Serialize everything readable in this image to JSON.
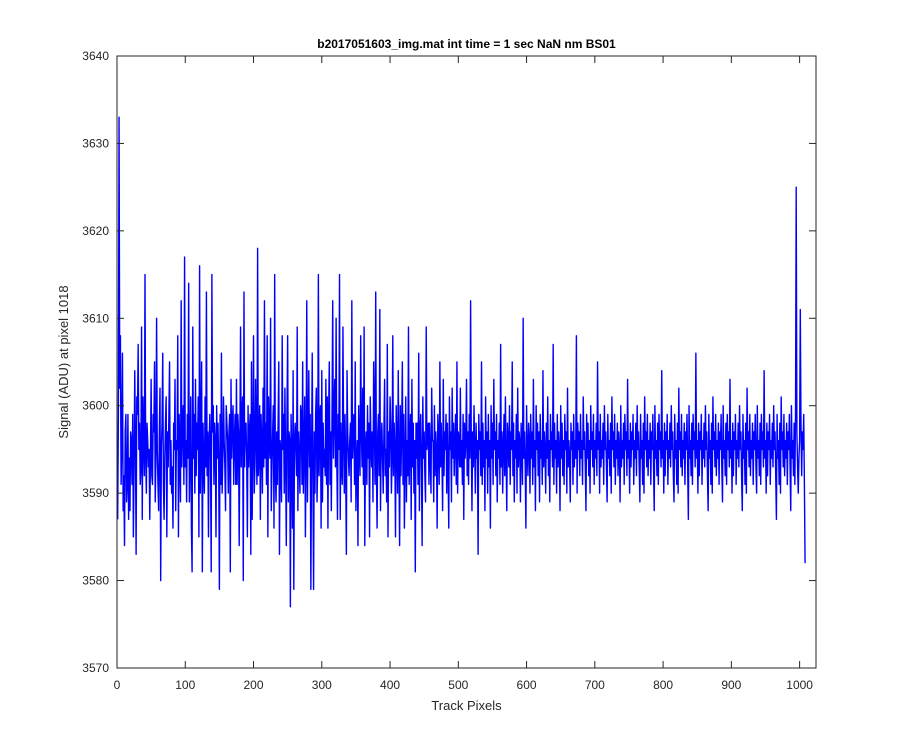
{
  "chart_data": {
    "type": "line",
    "title": "b2017051603_img.mat int time = 1 sec  NaN nm BS01",
    "xlabel": "Track Pixels",
    "ylabel": "Signal (ADU) at pixel 1018",
    "xlim": [
      0,
      1024
    ],
    "ylim": [
      3570,
      3640
    ],
    "xticks": [
      0,
      100,
      200,
      300,
      400,
      500,
      600,
      700,
      800,
      900,
      1000
    ],
    "yticks": [
      3570,
      3580,
      3590,
      3600,
      3610,
      3620,
      3630,
      3640
    ],
    "grid": false,
    "legend": "none",
    "series": [
      {
        "color": "#0000ff",
        "x_start": 1,
        "x_step": 1,
        "values": [
          3587,
          3599,
          3633,
          3602,
          3608,
          3591,
          3596,
          3606,
          3588,
          3592,
          3584,
          3597,
          3599,
          3589,
          3591,
          3599,
          3587,
          3594,
          3588,
          3597,
          3596,
          3591,
          3599,
          3585,
          3593,
          3604,
          3596,
          3583,
          3601,
          3599,
          3607,
          3595,
          3598,
          3591,
          3593,
          3609,
          3587,
          3601,
          3596,
          3592,
          3615,
          3594,
          3590,
          3598,
          3596,
          3593,
          3595,
          3587,
          3594,
          3603,
          3592,
          3591,
          3599,
          3597,
          3605,
          3589,
          3594,
          3610,
          3595,
          3591,
          3588,
          3597,
          3602,
          3580,
          3595,
          3598,
          3606,
          3591,
          3587,
          3594,
          3598,
          3601,
          3585,
          3597,
          3593,
          3599,
          3605,
          3591,
          3596,
          3590,
          3593,
          3586,
          3598,
          3595,
          3603,
          3588,
          3596,
          3595,
          3608,
          3585,
          3599,
          3594,
          3589,
          3612,
          3593,
          3598,
          3600,
          3591,
          3617,
          3593,
          3596,
          3589,
          3599,
          3594,
          3614,
          3589,
          3594,
          3601,
          3586,
          3581,
          3609,
          3594,
          3599,
          3590,
          3603,
          3592,
          3598,
          3595,
          3601,
          3585,
          3616,
          3590,
          3596,
          3605,
          3581,
          3598,
          3593,
          3590,
          3601,
          3593,
          3613,
          3592,
          3597,
          3585,
          3596,
          3599,
          3594,
          3581,
          3615,
          3597,
          3600,
          3591,
          3598,
          3596,
          3585,
          3600,
          3594,
          3598,
          3593,
          3579,
          3599,
          3591,
          3606,
          3590,
          3594,
          3601,
          3596,
          3593,
          3588,
          3600,
          3598,
          3596,
          3590,
          3597,
          3599,
          3581,
          3603,
          3594,
          3598,
          3600,
          3591,
          3596,
          3599,
          3591,
          3603,
          3591,
          3599,
          3597,
          3584,
          3596,
          3609,
          3593,
          3599,
          3601,
          3580,
          3613,
          3593,
          3598,
          3598,
          3594,
          3585,
          3600,
          3593,
          3597,
          3599,
          3583,
          3605,
          3587,
          3595,
          3608,
          3590,
          3593,
          3603,
          3596,
          3591,
          3618,
          3592,
          3594,
          3600,
          3587,
          3599,
          3596,
          3590,
          3602,
          3593,
          3612,
          3594,
          3598,
          3591,
          3608,
          3585,
          3601,
          3596,
          3594,
          3610,
          3588,
          3593,
          3597,
          3600,
          3586,
          3615,
          3592,
          3589,
          3597,
          3591,
          3598,
          3605,
          3583,
          3596,
          3594,
          3589,
          3608,
          3595,
          3599,
          3590,
          3602,
          3594,
          3584,
          3599,
          3608,
          3589,
          3597,
          3596,
          3577,
          3599,
          3594,
          3586,
          3604,
          3579,
          3596,
          3598,
          3595,
          3592,
          3609,
          3588,
          3597,
          3594,
          3590,
          3600,
          3599,
          3591,
          3605,
          3590,
          3595,
          3601,
          3585,
          3594,
          3612,
          3589,
          3597,
          3604,
          3593,
          3599,
          3579,
          3594,
          3606,
          3592,
          3579,
          3597,
          3590,
          3599,
          3602,
          3589,
          3593,
          3615,
          3592,
          3598,
          3600,
          3586,
          3604,
          3589,
          3598,
          3593,
          3595,
          3592,
          3603,
          3591,
          3601,
          3586,
          3599,
          3605,
          3591,
          3597,
          3588,
          3599,
          3612,
          3594,
          3599,
          3603,
          3593,
          3610,
          3594,
          3587,
          3599,
          3595,
          3615,
          3587,
          3598,
          3593,
          3591,
          3609,
          3596,
          3590,
          3599,
          3593,
          3583,
          3604,
          3597,
          3594,
          3592,
          3596,
          3598,
          3589,
          3612,
          3594,
          3597,
          3599,
          3591,
          3605,
          3588,
          3593,
          3596,
          3584,
          3600,
          3595,
          3592,
          3608,
          3597,
          3593,
          3602,
          3591,
          3609,
          3584,
          3595,
          3597,
          3591,
          3600,
          3594,
          3598,
          3585,
          3601,
          3596,
          3593,
          3597,
          3589,
          3605,
          3599,
          3591,
          3613,
          3593,
          3586,
          3597,
          3599,
          3592,
          3611,
          3588,
          3595,
          3598,
          3594,
          3590,
          3597,
          3603,
          3592,
          3595,
          3589,
          3607,
          3585,
          3597,
          3593,
          3601,
          3598,
          3590,
          3594,
          3608,
          3592,
          3598,
          3595,
          3585,
          3600,
          3596,
          3590,
          3604,
          3594,
          3584,
          3600,
          3592,
          3597,
          3605,
          3591,
          3599,
          3586,
          3594,
          3601,
          3589,
          3596,
          3592,
          3609,
          3591,
          3596,
          3599,
          3587,
          3603,
          3593,
          3598,
          3590,
          3596,
          3581,
          3598,
          3594,
          3598,
          3591,
          3606,
          3588,
          3597,
          3599,
          3593,
          3584,
          3601,
          3594,
          3597,
          3592,
          3589,
          3609,
          3595,
          3597,
          3598,
          3591,
          3598,
          3594,
          3590,
          3602,
          3596,
          3596,
          3589,
          3600,
          3592,
          3597,
          3595,
          3586,
          3599,
          3596,
          3591,
          3605,
          3593,
          3598,
          3594,
          3588,
          3603,
          3592,
          3597,
          3595,
          3599,
          3590,
          3598,
          3593,
          3586,
          3601,
          3595,
          3597,
          3589,
          3602,
          3594,
          3598,
          3592,
          3596,
          3599,
          3591,
          3605,
          3590,
          3597,
          3596,
          3593,
          3602,
          3593,
          3596,
          3591,
          3599,
          3587,
          3598,
          3594,
          3596,
          3603,
          3592,
          3597,
          3591,
          3599,
          3594,
          3612,
          3596,
          3588,
          3597,
          3593,
          3600,
          3595,
          3590,
          3598,
          3594,
          3596,
          3583,
          3599,
          3595,
          3597,
          3592,
          3605,
          3591,
          3598,
          3593,
          3596,
          3588,
          3601,
          3594,
          3597,
          3590,
          3599,
          3593,
          3596,
          3586,
          3600,
          3594,
          3598,
          3591,
          3603,
          3595,
          3597,
          3592,
          3599,
          3589,
          3596,
          3594,
          3598,
          3591,
          3607,
          3593,
          3597,
          3590,
          3595,
          3599,
          3592,
          3601,
          3594,
          3588,
          3598,
          3596,
          3593,
          3600,
          3591,
          3597,
          3595,
          3605,
          3592,
          3598,
          3589,
          3596,
          3594,
          3599,
          3590,
          3602,
          3593,
          3597,
          3596,
          3589,
          3598,
          3595,
          3591,
          3610,
          3594,
          3597,
          3593,
          3586,
          3600,
          3595,
          3592,
          3598,
          3596,
          3590,
          3599,
          3594,
          3597,
          3591,
          3603,
          3593,
          3596,
          3588,
          3600,
          3595,
          3598,
          3592,
          3597,
          3589,
          3599,
          3594,
          3596,
          3591,
          3604,
          3593,
          3597,
          3595,
          3590,
          3598,
          3594,
          3601,
          3592,
          3596,
          3589,
          3599,
          3595,
          3597,
          3593,
          3607,
          3591,
          3598,
          3594,
          3596,
          3590,
          3599,
          3593,
          3597,
          3595,
          3588,
          3600,
          3594,
          3598,
          3592,
          3596,
          3591,
          3599,
          3595,
          3597,
          3590,
          3602,
          3593,
          3596,
          3594,
          3589,
          3598,
          3595,
          3597,
          3591,
          3599,
          3593,
          3596,
          3594,
          3608,
          3590,
          3598,
          3595,
          3597,
          3592,
          3599,
          3594,
          3596,
          3591,
          3601,
          3595,
          3597,
          3593,
          3588,
          3599,
          3594,
          3598,
          3592,
          3596,
          3590,
          3600,
          3595,
          3597,
          3593,
          3599,
          3591,
          3596,
          3594,
          3598,
          3592,
          3605,
          3595,
          3597,
          3590,
          3599,
          3593,
          3596,
          3594,
          3598,
          3591,
          3600,
          3595,
          3597,
          3593,
          3589,
          3599,
          3594,
          3596,
          3592,
          3598,
          3590,
          3601,
          3595,
          3597,
          3593,
          3599,
          3591,
          3596,
          3594,
          3598,
          3592,
          3597,
          3595,
          3589,
          3600,
          3593,
          3596,
          3594,
          3598,
          3591,
          3599,
          3595,
          3597,
          3592,
          3603,
          3594,
          3596,
          3590,
          3598,
          3593,
          3597,
          3595,
          3599,
          3591,
          3596,
          3594,
          3598,
          3592,
          3600,
          3595,
          3597,
          3593,
          3589,
          3599,
          3594,
          3596,
          3591,
          3598,
          3590,
          3601,
          3595,
          3597,
          3593,
          3599,
          3592,
          3596,
          3594,
          3598,
          3591,
          3597,
          3595,
          3599,
          3593,
          3588,
          3600,
          3594,
          3596,
          3592,
          3598,
          3591,
          3599,
          3595,
          3597,
          3593,
          3604,
          3594,
          3596,
          3590,
          3598,
          3592,
          3597,
          3595,
          3599,
          3591,
          3596,
          3594,
          3598,
          3593,
          3600,
          3595,
          3597,
          3592,
          3589,
          3599,
          3594,
          3596,
          3591,
          3598,
          3590,
          3602,
          3595,
          3597,
          3593,
          3599,
          3592,
          3596,
          3594,
          3598,
          3591,
          3597,
          3595,
          3599,
          3593,
          3587,
          3600,
          3594,
          3596,
          3592,
          3598,
          3591,
          3599,
          3595,
          3597,
          3593,
          3606,
          3594,
          3596,
          3590,
          3598,
          3592,
          3597,
          3595,
          3599,
          3591,
          3596,
          3594,
          3598,
          3593,
          3600,
          3595,
          3597,
          3592,
          3588,
          3599,
          3594,
          3596,
          3591,
          3598,
          3590,
          3601,
          3595,
          3597,
          3593,
          3599,
          3592,
          3596,
          3594,
          3598,
          3591,
          3597,
          3595,
          3599,
          3593,
          3589,
          3600,
          3594,
          3596,
          3592,
          3598,
          3591,
          3599,
          3595,
          3597,
          3593,
          3603,
          3594,
          3596,
          3590,
          3598,
          3592,
          3597,
          3595,
          3599,
          3591,
          3596,
          3594,
          3598,
          3593,
          3600,
          3595,
          3597,
          3592,
          3588,
          3599,
          3594,
          3596,
          3591,
          3598,
          3590,
          3602,
          3595,
          3597,
          3593,
          3599,
          3592,
          3596,
          3594,
          3598,
          3591,
          3597,
          3595,
          3599,
          3593,
          3590,
          3600,
          3594,
          3596,
          3592,
          3598,
          3591,
          3599,
          3595,
          3597,
          3593,
          3604,
          3594,
          3596,
          3590,
          3598,
          3592,
          3597,
          3595,
          3599,
          3591,
          3596,
          3594,
          3598,
          3593,
          3600,
          3595,
          3597,
          3592,
          3587,
          3599,
          3594,
          3596,
          3591,
          3598,
          3590,
          3601,
          3595,
          3597,
          3593,
          3599,
          3592,
          3596,
          3594,
          3598,
          3591,
          3597,
          3595,
          3599,
          3593,
          3588,
          3600,
          3594,
          3596,
          3592,
          3598,
          3591,
          3599,
          3625,
          3597,
          3593,
          3590,
          3594,
          3596,
          3611,
          3598,
          3592,
          3597,
          3595,
          3599,
          3591,
          3582
        ]
      }
    ]
  }
}
